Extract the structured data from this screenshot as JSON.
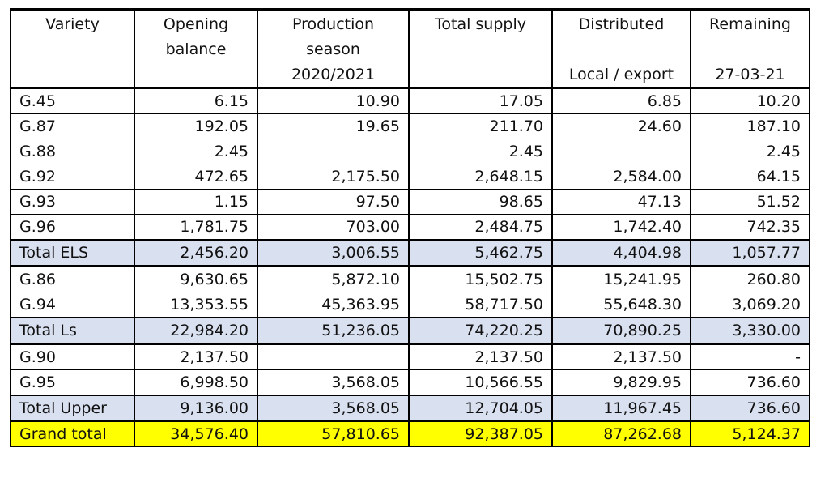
{
  "headers": [
    {
      "lines": [
        "Variety"
      ]
    },
    {
      "lines": [
        "Opening",
        "balance"
      ]
    },
    {
      "lines": [
        "Production",
        "season",
        "2020/2021"
      ]
    },
    {
      "lines": [
        "Total supply"
      ]
    },
    {
      "lines": [
        "Distributed",
        "",
        "Local / export"
      ]
    },
    {
      "lines": [
        "Remaining",
        "",
        "27-03-21"
      ]
    }
  ],
  "rows": [
    {
      "type": "data",
      "cells": [
        "G.45",
        "6.15",
        "10.90",
        "17.05",
        "6.85",
        "10.20"
      ]
    },
    {
      "type": "data",
      "cells": [
        "G.87",
        "192.05",
        "19.65",
        "211.70",
        "24.60",
        "187.10"
      ]
    },
    {
      "type": "data",
      "cells": [
        "G.88",
        "2.45",
        "",
        "2.45",
        "",
        "2.45"
      ]
    },
    {
      "type": "data",
      "cells": [
        "G.92",
        "472.65",
        "2,175.50",
        "2,648.15",
        "2,584.00",
        "64.15"
      ]
    },
    {
      "type": "data",
      "cells": [
        "G.93",
        "1.15",
        "97.50",
        "98.65",
        "47.13",
        "51.52"
      ]
    },
    {
      "type": "data",
      "cells": [
        "G.96",
        "1,781.75",
        "703.00",
        "2,484.75",
        "1,742.40",
        "742.35"
      ]
    },
    {
      "type": "subtotal",
      "cells": [
        "Total ELS",
        "2,456.20",
        "3,006.55",
        "5,462.75",
        "4,404.98",
        "1,057.77"
      ]
    },
    {
      "type": "data",
      "group_start": true,
      "cells": [
        "G.86",
        "9,630.65",
        "5,872.10",
        "15,502.75",
        "15,241.95",
        "260.80"
      ]
    },
    {
      "type": "data",
      "cells": [
        "G.94",
        "13,353.55",
        "45,363.95",
        "58,717.50",
        "55,648.30",
        "3,069.20"
      ]
    },
    {
      "type": "subtotal",
      "cells": [
        "Total Ls",
        "22,984.20",
        "51,236.05",
        "74,220.25",
        "70,890.25",
        "3,330.00"
      ]
    },
    {
      "type": "data",
      "group_start": true,
      "cells": [
        "G.90",
        "2,137.50",
        "",
        "2,137.50",
        "2,137.50",
        "-"
      ]
    },
    {
      "type": "data",
      "cells": [
        "G.95",
        "6,998.50",
        "3,568.05",
        "10,566.55",
        "9,829.95",
        "736.60"
      ]
    },
    {
      "type": "subtotal",
      "cells": [
        "Total Upper",
        "9,136.00",
        "3,568.05",
        "12,704.05",
        "11,967.45",
        "736.60"
      ]
    },
    {
      "type": "grand",
      "cells": [
        "Grand total",
        "34,576.40",
        "57,810.65",
        "92,387.05",
        "87,262.68",
        "5,124.37"
      ]
    }
  ]
}
